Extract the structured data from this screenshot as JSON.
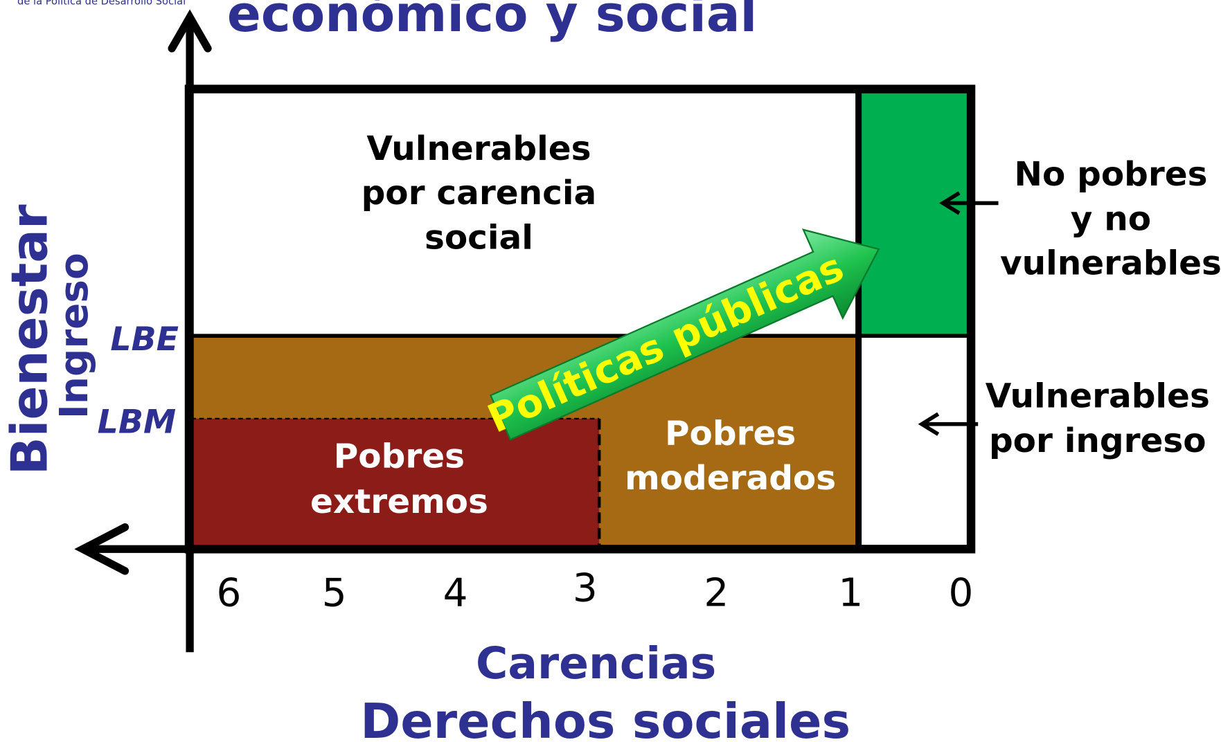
{
  "header": {
    "org": "de la Política de Desarrollo Social",
    "title": "económico y social"
  },
  "regions": {
    "vulnerables_carencia": [
      "Vulnerables",
      "por carencia",
      "social"
    ],
    "no_pobres": [
      "No pobres",
      "y no",
      "vulnerables"
    ],
    "vulnerables_ingreso": [
      "Vulnerables",
      "por ingreso"
    ],
    "pobres_extremos": [
      "Pobres",
      "extremos"
    ],
    "pobres_moderados": [
      "Pobres",
      "moderados"
    ]
  },
  "arrow_label": "Políticas públicas",
  "y_axis": {
    "labels": [
      "Bienestar",
      "Ingreso"
    ],
    "lines": [
      "LBE",
      "LBM"
    ]
  },
  "x_axis": {
    "ticks": [
      "6",
      "5",
      "4",
      "3",
      "2",
      "1",
      "0"
    ],
    "labels": [
      "Carencias",
      "Derechos sociales"
    ]
  }
}
